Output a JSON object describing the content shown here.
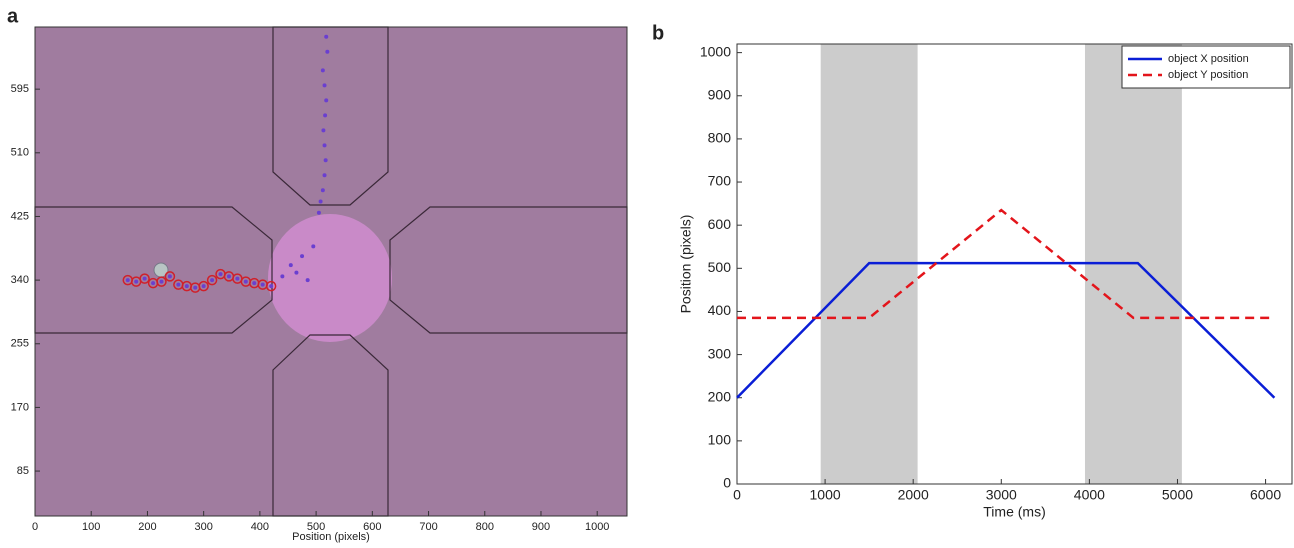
{
  "chart_data": [
    {
      "type": "scatter",
      "panel_label": "a",
      "xlabel": "Position (pixels)",
      "xlim": [
        0,
        1053
      ],
      "ylim": [
        25,
        678
      ],
      "xticks": [
        0,
        100,
        200,
        300,
        400,
        500,
        600,
        700,
        800,
        900,
        1000
      ],
      "yticks": [
        85,
        170,
        255,
        340,
        425,
        510,
        595
      ],
      "series": [
        {
          "color": "#d0202a",
          "marker": "ring",
          "x": [
            165,
            180,
            195,
            210,
            225,
            240,
            255,
            270,
            285,
            300,
            315,
            330,
            345,
            360,
            375,
            390,
            405,
            420
          ],
          "values": [
            340,
            338,
            342,
            336,
            338,
            345,
            334,
            332,
            330,
            332,
            340,
            348,
            345,
            342,
            338,
            336,
            334,
            332
          ]
        },
        {
          "color": "#6a3fd0",
          "marker": "dot",
          "x": [
            165,
            180,
            195,
            210,
            225,
            240,
            255,
            270,
            285,
            300,
            315,
            330,
            345,
            360,
            375,
            390,
            405,
            420,
            440,
            455,
            465,
            475,
            485,
            495,
            505,
            508,
            512,
            515,
            517,
            515,
            513,
            516,
            518,
            515,
            512,
            520,
            518
          ],
          "values": [
            340,
            338,
            342,
            336,
            338,
            345,
            334,
            332,
            330,
            332,
            340,
            348,
            345,
            342,
            338,
            336,
            334,
            332,
            345,
            360,
            350,
            372,
            340,
            385,
            430,
            445,
            460,
            480,
            500,
            520,
            540,
            560,
            580,
            600,
            620,
            645,
            665
          ]
        }
      ]
    },
    {
      "type": "line",
      "panel_label": "b",
      "xlabel": "Time (ms)",
      "ylabel": "Position (pixels)",
      "xlim": [
        0,
        6300
      ],
      "ylim": [
        0,
        1020
      ],
      "xticks": [
        0,
        1000,
        2000,
        3000,
        4000,
        5000,
        6000
      ],
      "yticks": [
        0,
        100,
        200,
        300,
        400,
        500,
        600,
        700,
        800,
        900,
        1000
      ],
      "shaded_regions": [
        [
          950,
          2050
        ],
        [
          3950,
          5050
        ]
      ],
      "legend": "upper right",
      "x": [
        0,
        1500,
        3000,
        4500,
        4550,
        6100
      ],
      "series": [
        {
          "name": "object X position",
          "color": "#0a1ed6",
          "style": "solid",
          "values": [
            200,
            512,
            512,
            512,
            512,
            200
          ]
        },
        {
          "name": "object Y position",
          "color": "#e3151b",
          "style": "dashed",
          "values": [
            385,
            385,
            635,
            385,
            385,
            385
          ]
        }
      ]
    }
  ]
}
